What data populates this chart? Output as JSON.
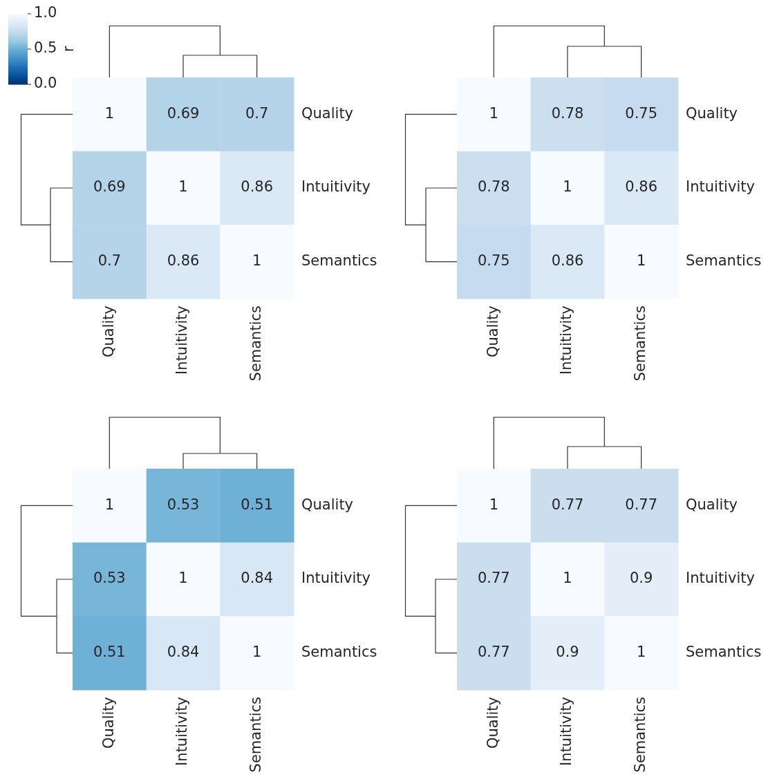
{
  "chart_data": [
    {
      "type": "heatmap",
      "categories": [
        "Quality",
        "Intuitivity",
        "Semantics"
      ],
      "y_categories": [
        "Quality",
        "Intuitivity",
        "Semantics"
      ],
      "cells": [
        [
          1,
          0.69,
          0.7
        ],
        [
          0.69,
          1,
          0.86
        ],
        [
          0.7,
          0.86,
          1
        ]
      ],
      "data_labels": true,
      "clim": [
        0,
        1
      ],
      "cticks": [
        {
          "value": 0,
          "label": "0.0"
        },
        {
          "value": 0.5,
          "label": "0.5"
        },
        {
          "value": 1,
          "label": "1.0"
        }
      ],
      "clabel": "r"
    },
    {
      "type": "heatmap",
      "categories": [
        "Quality",
        "Intuitivity",
        "Semantics"
      ],
      "y_categories": [
        "Quality",
        "Intuitivity",
        "Semantics"
      ],
      "cells": [
        [
          1,
          0.78,
          0.75
        ],
        [
          0.78,
          1,
          0.86
        ],
        [
          0.75,
          0.86,
          1
        ]
      ],
      "data_labels": true
    },
    {
      "type": "heatmap",
      "categories": [
        "Quality",
        "Intuitivity",
        "Semantics"
      ],
      "y_categories": [
        "Quality",
        "Intuitivity",
        "Semantics"
      ],
      "cells": [
        [
          1,
          0.53,
          0.51
        ],
        [
          0.53,
          1,
          0.84
        ],
        [
          0.51,
          0.84,
          1
        ]
      ],
      "data_labels": true
    },
    {
      "type": "heatmap",
      "categories": [
        "Quality",
        "Intuitivity",
        "Semantics"
      ],
      "y_categories": [
        "Quality",
        "Intuitivity",
        "Semantics"
      ],
      "cells": [
        [
          1,
          0.77,
          0.77
        ],
        [
          0.77,
          1,
          0.9
        ],
        [
          0.77,
          0.9,
          1
        ]
      ],
      "data_labels": true
    }
  ]
}
